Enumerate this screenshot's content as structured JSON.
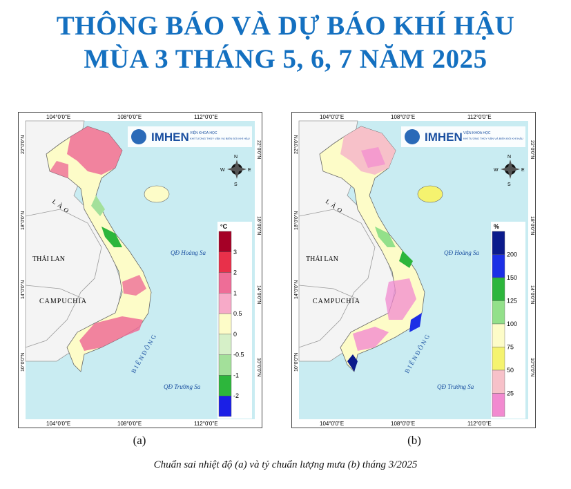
{
  "title_line1": "THÔNG BÁO VÀ DỰ BÁO KHÍ HẬU",
  "title_line2": "MÙA 3 THÁNG 5, 6, 7 NĂM 2025",
  "maps": [
    {
      "panel_label": "(a)",
      "legend_unit": "°C",
      "legend_values": [
        "3",
        "2",
        "1",
        "0.5",
        "0",
        "-0.5",
        "-1",
        "-2"
      ],
      "legend_colors": [
        "#a50026",
        "#e8304a",
        "#ee6d97",
        "#f7aac8",
        "#fdfcc8",
        "#d6f0c8",
        "#a3e09a",
        "#2db63c",
        "#1a1fe6"
      ]
    },
    {
      "panel_label": "(b)",
      "legend_unit": "%",
      "legend_values": [
        "200",
        "150",
        "125",
        "100",
        "75",
        "50",
        "25"
      ],
      "legend_colors": [
        "#0b1a8c",
        "#1c2fe6",
        "#2db63c",
        "#93e08a",
        "#fdfcc8",
        "#f5f36f",
        "#f7c1c9",
        "#f28ad0"
      ]
    }
  ],
  "common": {
    "lon_labels": [
      "104°0'0\"E",
      "108°0'0\"E",
      "112°0'0\"E"
    ],
    "lat_labels": [
      "22°0'0\"N",
      "18°0'0\"N",
      "14°0'0\"N",
      "10°0'0\"N"
    ],
    "logo_name": "IMHEN",
    "logo_line1": "VIỆN KHOA HỌC",
    "logo_line2": "KHÍ TƯỢNG THỦY VĂN VÀ BIẾN ĐỔI KHÍ HẬU",
    "country_lao": "L À O",
    "country_thailan": "THÁI LAN",
    "country_campuchia": "CAMPUCHIA",
    "sea_label": "B I Ể N   Đ Ô N G",
    "paracel": "QĐ Hoàng Sa",
    "spratly": "QĐ Trường Sa",
    "compass_n": "N",
    "compass_s": "S",
    "compass_e": "E",
    "compass_w": "W"
  },
  "caption": "Chuẩn sai nhiệt độ (a) và tỷ chuẩn lượng mưa (b) tháng 3/2025"
}
